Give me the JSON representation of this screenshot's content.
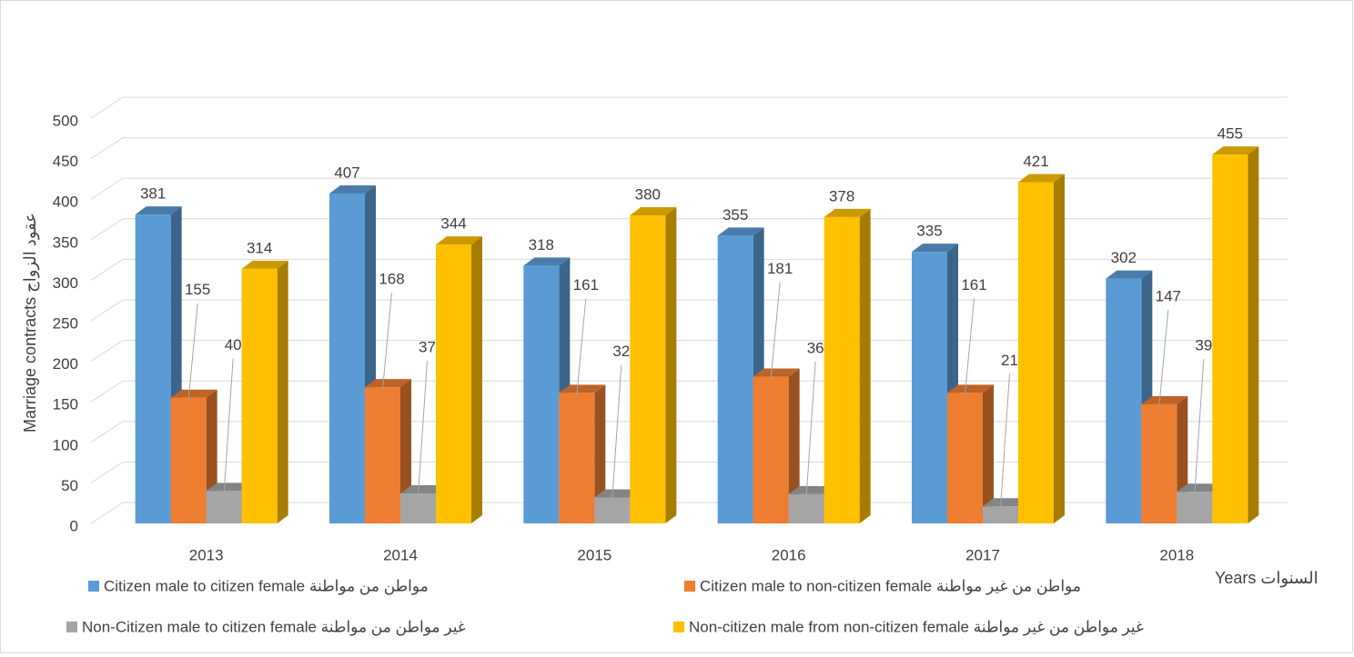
{
  "chart_data": {
    "type": "bar3d",
    "x_label": "Years السنوات",
    "y_label": "Marriage contracts عقود الزواج",
    "categories": [
      "2013",
      "2014",
      "2015",
      "2016",
      "2017",
      "2018"
    ],
    "series": [
      {
        "name": "Citizen male to citizen female  مواطن من مواطنة",
        "color": "#5b9bd5",
        "values": [
          381,
          407,
          318,
          355,
          335,
          302
        ]
      },
      {
        "name": "Citizen male to non-citizen female مواطن من غير مواطنة",
        "color": "#ed7d31",
        "values": [
          155,
          168,
          161,
          181,
          161,
          147
        ]
      },
      {
        "name": "Non-Citizen male to citizen female غير مواطن من مواطنة",
        "color": "#a5a5a5",
        "values": [
          40,
          37,
          32,
          36,
          21,
          39
        ]
      },
      {
        "name": "Non-citizen male from non-citizen female غير مواطن من غير مواطنة",
        "color": "#ffc000",
        "values": [
          314,
          344,
          380,
          378,
          421,
          455
        ]
      }
    ],
    "ylim": [
      0,
      500
    ],
    "yticks": [
      0,
      50,
      100,
      150,
      200,
      250,
      300,
      350,
      400,
      450,
      500
    ],
    "grid": true,
    "legend": "bottom"
  }
}
